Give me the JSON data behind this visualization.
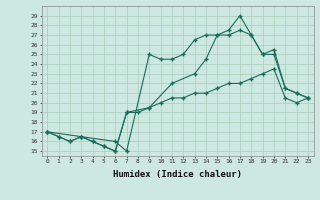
{
  "xlabel": "Humidex (Indice chaleur)",
  "bg_color": "#cce8e0",
  "line_color": "#1a6b5a",
  "grid_color": "#aaccbb",
  "xlim": [
    -0.5,
    23.5
  ],
  "ylim": [
    14.5,
    30.0
  ],
  "xticks": [
    0,
    1,
    2,
    3,
    4,
    5,
    6,
    7,
    8,
    9,
    10,
    11,
    12,
    13,
    14,
    15,
    16,
    17,
    18,
    19,
    20,
    21,
    22,
    23
  ],
  "yticks": [
    15,
    16,
    17,
    18,
    19,
    20,
    21,
    22,
    23,
    24,
    25,
    26,
    27,
    28,
    29
  ],
  "line1_x": [
    0,
    1,
    2,
    3,
    4,
    5,
    6,
    7,
    8,
    9,
    10,
    11,
    12,
    13,
    14,
    15,
    16,
    17,
    18,
    19,
    20,
    21,
    22,
    23
  ],
  "line1_y": [
    17,
    16.5,
    16,
    16.5,
    16,
    15.5,
    15,
    19,
    19,
    19.5,
    20,
    20.5,
    20.5,
    21,
    21,
    21.5,
    22,
    22,
    22.5,
    23,
    23.5,
    20.5,
    20,
    20.5
  ],
  "line2_x": [
    0,
    3,
    6,
    7,
    9,
    10,
    11,
    12,
    13,
    14,
    15,
    16,
    17,
    18,
    19,
    20,
    21,
    22,
    23
  ],
  "line2_y": [
    17,
    16.5,
    16,
    15,
    25,
    24.5,
    24.5,
    25,
    26.5,
    27,
    27,
    27,
    27.5,
    27,
    25,
    25.5,
    21.5,
    21,
    20.5
  ],
  "line3_x": [
    0,
    1,
    2,
    3,
    4,
    5,
    6,
    7,
    9,
    11,
    13,
    14,
    15,
    16,
    17,
    18,
    19,
    20,
    21,
    22,
    23
  ],
  "line3_y": [
    17,
    16.5,
    16,
    16.5,
    16,
    15.5,
    15,
    19,
    19.5,
    22,
    23,
    24.5,
    27,
    27.5,
    29,
    27,
    25,
    25,
    21.5,
    21,
    20.5
  ]
}
